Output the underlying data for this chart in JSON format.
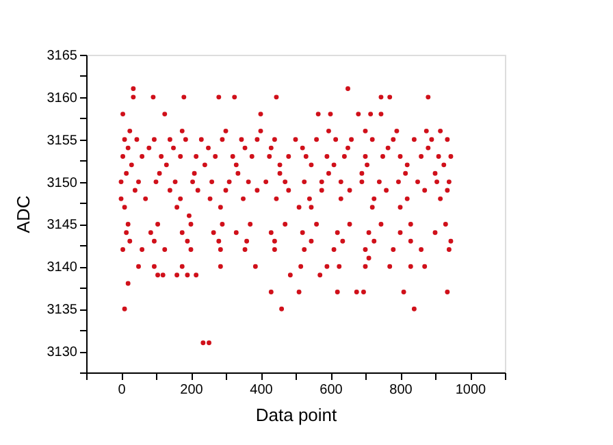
{
  "chart_data": {
    "type": "scatter",
    "xlabel": "Data point",
    "ylabel": "ADC",
    "xlim": [
      -100,
      1100
    ],
    "ylim": [
      3127.5,
      3165
    ],
    "xticks": [
      {
        "value": -100,
        "label": null
      },
      0,
      {
        "value": 100,
        "label": null
      },
      200,
      {
        "value": 300,
        "label": null
      },
      400,
      {
        "value": 500,
        "label": null
      },
      600,
      {
        "value": 700,
        "label": null
      },
      800,
      {
        "value": 900,
        "label": null
      },
      1000,
      {
        "value": 1100,
        "label": null
      }
    ],
    "yticks": [
      {
        "value": 3127.5,
        "label": null
      },
      3130,
      {
        "value": 3132.5,
        "label": null
      },
      3135,
      {
        "value": 3137.5,
        "label": null
      },
      3140,
      {
        "value": 3142.5,
        "label": null
      },
      3145,
      {
        "value": 3147.5,
        "label": null
      },
      3150,
      {
        "value": 3152.5,
        "label": null
      },
      3155,
      {
        "value": 3157.5,
        "label": null
      },
      3160,
      {
        "value": 3162.5,
        "label": null
      },
      3165
    ],
    "grid": false,
    "marker": "circle",
    "series": [
      {
        "color": "#d0101a",
        "x": [
          10,
          20,
          235,
          252,
          460,
          840,
          35,
          650,
          35,
          92,
          180,
          280,
          325,
          445,
          745,
          770,
          880,
          5,
          125,
          400,
          565,
          600,
          680,
          715,
          745,
          430,
          510,
          620,
          675,
          695,
          810,
          935,
          105,
          120,
          160,
          190,
          215,
          485,
          570,
          710,
          195,
          10,
          45,
          95,
          140,
          185,
          230,
          290,
          345,
          390,
          440,
          500,
          560,
          615,
          660,
          720,
          780,
          840,
          890,
          935,
          5,
          60,
          115,
          170,
          215,
          270,
          320,
          375,
          425,
          480,
          530,
          590,
          640,
          700,
          750,
          800,
          860,
          910,
          945,
          0,
          50,
          100,
          155,
          205,
          260,
          310,
          365,
          415,
          470,
          525,
          575,
          630,
          690,
          740,
          795,
          850,
          905,
          940,
          30,
          130,
          240,
          330,
          455,
          545,
          610,
          705,
          820,
          925,
          20,
          80,
          150,
          250,
          355,
          430,
          520,
          650,
          765,
          880,
          15,
          110,
          210,
          335,
          455,
          595,
          690,
          815,
          900,
          25,
          175,
          300,
          400,
          595,
          700,
          790,
          875,
          915,
          40,
          140,
          220,
          300,
          390,
          480,
          575,
          655,
          760,
          870,
          935,
          0,
          70,
          170,
          255,
          350,
          445,
          540,
          630,
          725,
          820,
          915,
          10,
          160,
          285,
          510,
          545,
          720,
          800,
          20,
          105,
          200,
          290,
          370,
          470,
          560,
          655,
          745,
          830,
          930,
          15,
          85,
          175,
          265,
          330,
          430,
          520,
          620,
          710,
          800,
          900,
          25,
          95,
          190,
          280,
          360,
          440,
          545,
          635,
          725,
          830,
          945,
          5,
          60,
          125,
          200,
          285,
          355,
          440,
          525,
          610,
          700,
          780,
          860,
          940,
          50,
          95,
          175,
          285,
          385,
          515,
          590,
          625,
          700,
          770,
          830,
          870
        ],
        "values": [
          3135,
          3138,
          3131,
          3131,
          3135,
          3135,
          3161,
          3161,
          3160,
          3160,
          3160,
          3160,
          3160,
          3160,
          3160,
          3160,
          3160,
          3158,
          3158,
          3158,
          3158,
          3158,
          3158,
          3158,
          3158,
          3137,
          3137,
          3137,
          3137,
          3137,
          3137,
          3137,
          3139,
          3139,
          3139,
          3139,
          3139,
          3139,
          3139,
          3141,
          3146,
          3155,
          3155,
          3155,
          3155,
          3155,
          3155,
          3155,
          3155,
          3155,
          3155,
          3155,
          3155,
          3155,
          3155,
          3155,
          3155,
          3155,
          3155,
          3155,
          3153,
          3153,
          3153,
          3153,
          3153,
          3153,
          3153,
          3153,
          3153,
          3153,
          3153,
          3153,
          3153,
          3153,
          3153,
          3153,
          3153,
          3153,
          3153,
          3150,
          3150,
          3150,
          3150,
          3150,
          3150,
          3150,
          3150,
          3150,
          3150,
          3150,
          3150,
          3150,
          3150,
          3150,
          3150,
          3150,
          3150,
          3150,
          3152,
          3152,
          3152,
          3152,
          3152,
          3152,
          3152,
          3152,
          3152,
          3152,
          3154,
          3154,
          3154,
          3154,
          3154,
          3154,
          3154,
          3154,
          3154,
          3154,
          3151,
          3151,
          3151,
          3151,
          3151,
          3151,
          3151,
          3151,
          3151,
          3156,
          3156,
          3156,
          3156,
          3156,
          3156,
          3156,
          3156,
          3156,
          3149,
          3149,
          3149,
          3149,
          3149,
          3149,
          3149,
          3149,
          3149,
          3149,
          3149,
          3148,
          3148,
          3148,
          3148,
          3148,
          3148,
          3148,
          3148,
          3148,
          3148,
          3148,
          3147,
          3147,
          3147,
          3147,
          3147,
          3147,
          3147,
          3145,
          3145,
          3145,
          3145,
          3145,
          3145,
          3145,
          3145,
          3145,
          3145,
          3145,
          3144,
          3144,
          3144,
          3144,
          3144,
          3144,
          3144,
          3144,
          3144,
          3144,
          3144,
          3143,
          3143,
          3143,
          3143,
          3143,
          3143,
          3143,
          3143,
          3143,
          3143,
          3143,
          3142,
          3142,
          3142,
          3142,
          3142,
          3142,
          3142,
          3142,
          3142,
          3142,
          3142,
          3142,
          3142,
          3140,
          3140,
          3140,
          3140,
          3140,
          3140,
          3140,
          3140,
          3140,
          3140,
          3140,
          3140
        ]
      }
    ]
  }
}
